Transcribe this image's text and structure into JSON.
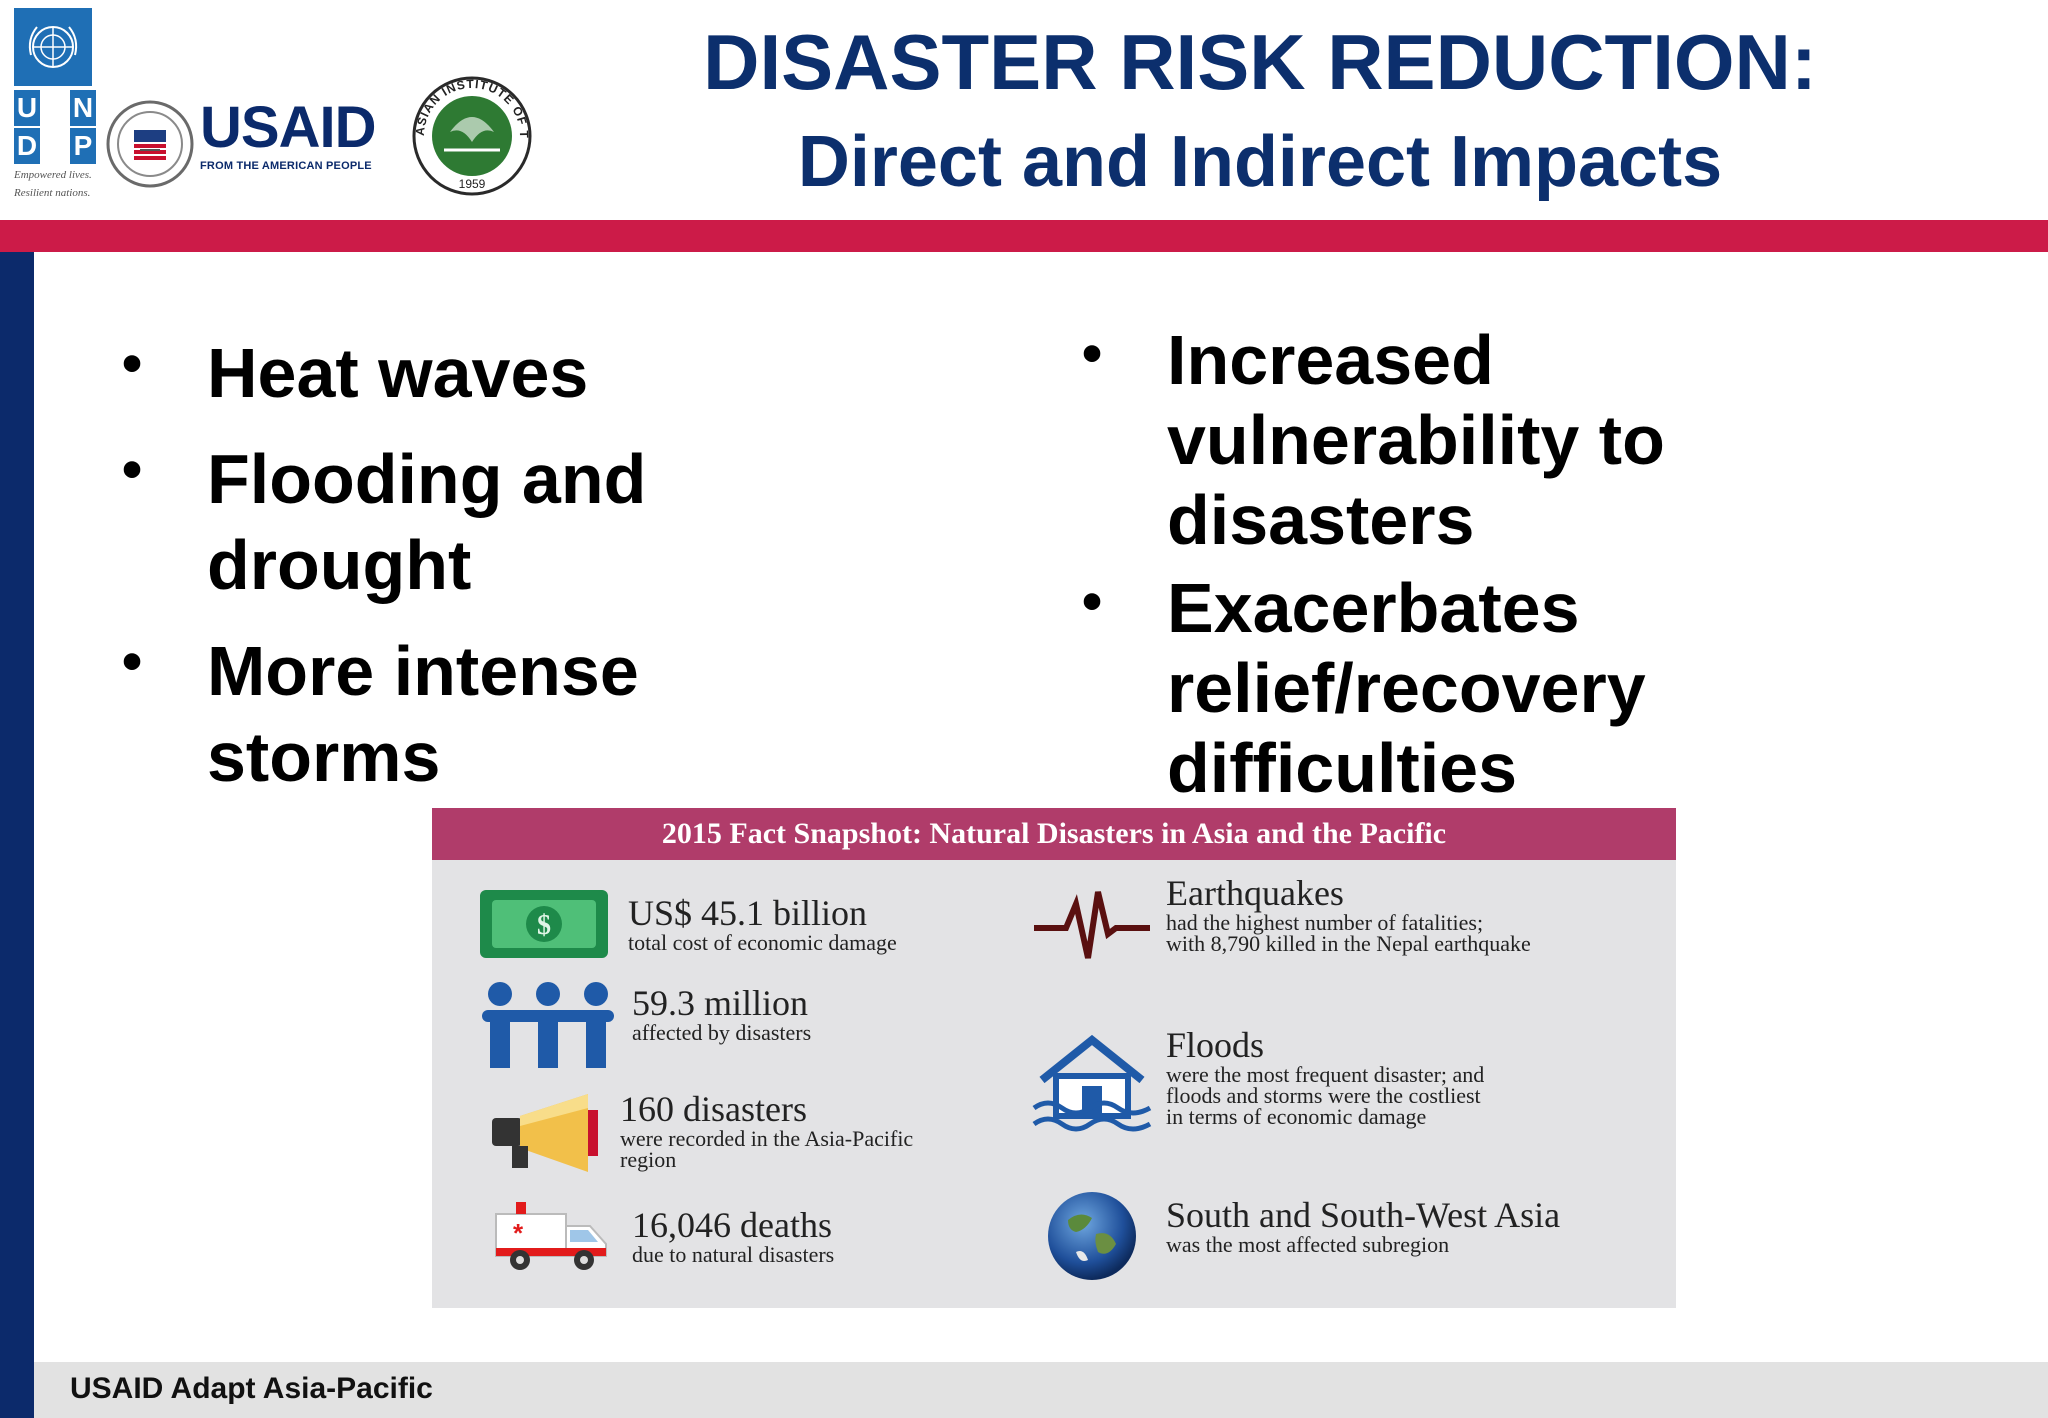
{
  "header": {
    "title_line1": "DISASTER RISK REDUCTION:",
    "title_line2": "Direct and Indirect Impacts",
    "logos": {
      "undp_letters": [
        "U",
        "N",
        "D",
        "P"
      ],
      "undp_tagline_1": "Empowered lives.",
      "undp_tagline_2": "Resilient nations.",
      "usaid_word": "USAID",
      "usaid_sub": "FROM THE AMERICAN PEOPLE",
      "ait_text": "ASIAN INSTITUTE OF TECHNOLOGY",
      "ait_year": "1959"
    }
  },
  "bullets_left": [
    "Heat waves",
    "Flooding and drought",
    "More intense storms"
  ],
  "bullets_right": [
    "Increased vulnerability to disasters",
    "Exacerbates relief/recovery difficulties"
  ],
  "bullet_glyph": "•",
  "infographic": {
    "title": "2015 Fact Snapshot: Natural Disasters in Asia and the Pacific",
    "left_facts": [
      {
        "icon": "money-icon",
        "headline": "US$ 45.1 billion",
        "lines": [
          "total cost of economic damage"
        ]
      },
      {
        "icon": "people-icon",
        "headline": "59.3 million",
        "lines": [
          "affected by disasters"
        ]
      },
      {
        "icon": "megaphone-icon",
        "headline": "160 disasters",
        "lines": [
          "were recorded in the Asia-Pacific",
          "region"
        ]
      },
      {
        "icon": "ambulance-icon",
        "headline": "16,046 deaths",
        "lines": [
          "due to natural disasters"
        ]
      }
    ],
    "right_facts": [
      {
        "icon": "seismograph-icon",
        "headline": "Earthquakes",
        "lines": [
          "had the highest number of fatalities;",
          "with 8,790 killed in the Nepal earthquake"
        ]
      },
      {
        "icon": "flooded-house-icon",
        "headline": "Floods",
        "lines": [
          "were the most frequent disaster;  and",
          "floods and storms were  the costliest",
          "in terms of economic damage"
        ]
      },
      {
        "icon": "globe-icon",
        "headline": "South  and South-West Asia",
        "lines": [
          "was the most affected subregion"
        ]
      }
    ]
  },
  "footer": {
    "text": "USAID Adapt Asia-Pacific"
  },
  "colors": {
    "title": "#0c2f6d",
    "red_bar": "#cc1b48",
    "blue_bar": "#0c2a6b",
    "info_header": "#b03c6a",
    "info_bg": "#e3e3e5"
  }
}
